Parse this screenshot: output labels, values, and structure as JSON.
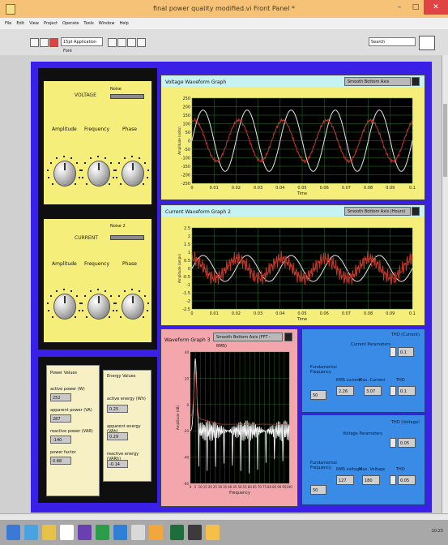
{
  "window": {
    "title": "final power quality modified.vi Front Panel *",
    "controls": {
      "minimize": "–",
      "maximize": "□",
      "close": "✕"
    }
  },
  "menu": [
    "File",
    "Edit",
    "View",
    "Project",
    "Operate",
    "Tools",
    "Window",
    "Help"
  ],
  "toolbar": {
    "font": "15pt Application Font",
    "search": "Search"
  },
  "voltage": {
    "title": "VOLTAGE",
    "slider_label": "Noise",
    "amplitude_label": "Amplitude",
    "frequency_label": "Frequency",
    "phase_label": "Phase"
  },
  "current": {
    "title": "CURRENT",
    "slider_label": "Noise 2",
    "amplitude_label": "Amplitude",
    "frequency_label": "Frequency",
    "phase_label": "Phase"
  },
  "power_values": {
    "title": "Power Values",
    "items": [
      {
        "label": "active power (W)",
        "value": "252"
      },
      {
        "label": "apparent power (VA)",
        "value": "287"
      },
      {
        "label": "reactive power (VAR)",
        "value": "-140"
      },
      {
        "label": "power factor",
        "value": "0.88"
      }
    ]
  },
  "energy_values": {
    "title": "Energy Values",
    "items": [
      {
        "label": "active energy (Wh)",
        "value": "0.25"
      },
      {
        "label": "apparent energy (VAh)",
        "value": "0.29"
      },
      {
        "label": "reactive energy (VARh)",
        "value": "-0.14"
      }
    ]
  },
  "voltage_graph": {
    "title": "Voltage Waveform Graph",
    "scale_button": "Smooth Bottom Axis",
    "xlabel": "Time",
    "ylabel": "Amplitude (volts)"
  },
  "current_graph": {
    "title": "Current Waveform Graph 2",
    "scale_button": "Smooth Bottom Axis (Hours)",
    "xlabel": "Time",
    "ylabel": "Amplitude (amps)"
  },
  "fft_graph": {
    "title": "Waveform Graph 3",
    "scale_button": "Smooth Bottom Axis (FFT - RMS)",
    "xlabel": "Frequency",
    "ylabel": "Amplitude (dB)"
  },
  "current_params": {
    "title": "Current Parameters",
    "thd_label": "THD (Current)",
    "thd_value": "0.1",
    "fund_freq_label": "Fundamental Frequency",
    "fund_freq_value": "50",
    "rms_label": "RMS current",
    "rms_value": "2.26",
    "max_label": "Max. Current",
    "max_value": "3.07",
    "thd2_label": "THD",
    "thd2_value": "0.1"
  },
  "voltage_params": {
    "title": "Voltage Parameters",
    "thd_label": "THD (Voltage)",
    "thd_value": "0.05",
    "fund_freq_label": "Fundamental Frequency",
    "fund_freq_value": "50",
    "rms_label": "RMS voltage",
    "rms_value": "127",
    "max_label": "Max. Voltage",
    "max_value": "180",
    "thd2_label": "THD",
    "thd2_value": "0.05"
  },
  "tray": {
    "time": "10:23"
  },
  "chart_data": [
    {
      "type": "line",
      "title": "Voltage Waveform Graph",
      "xlabel": "Time",
      "ylabel": "Amplitude (volts)",
      "x_ticks": [
        0,
        0.01,
        0.02,
        0.03,
        0.04,
        0.05,
        0.06,
        0.07,
        0.08,
        0.09,
        0.1
      ],
      "y_ticks": [
        -250,
        -200,
        -150,
        -100,
        -50,
        0,
        50,
        100,
        150,
        200,
        250
      ],
      "xlim": [
        0,
        0.1
      ],
      "ylim": [
        -250,
        250
      ],
      "series": [
        {
          "color": "#e6e6e6",
          "amplitude": 180,
          "frequency": 50,
          "phase": 0,
          "noise": 0
        },
        {
          "color": "#c0392b",
          "amplitude": 120,
          "frequency": 50,
          "phase": 1.2,
          "noise": 10
        }
      ]
    },
    {
      "type": "line",
      "title": "Current Waveform Graph 2",
      "xlabel": "Time",
      "ylabel": "Amplitude (amps)",
      "x_ticks": [
        0,
        0.01,
        0.02,
        0.03,
        0.04,
        0.05,
        0.06,
        0.07,
        0.08,
        0.09,
        0.1
      ],
      "y_ticks": [
        -2.5,
        -2,
        -1.5,
        -1,
        -0.5,
        0,
        0.5,
        1,
        1.5,
        2,
        2.5
      ],
      "xlim": [
        0,
        0.1
      ],
      "ylim": [
        -2.5,
        2.5
      ],
      "series": [
        {
          "color": "#e6e6e6",
          "amplitude": 0.8,
          "frequency": 50,
          "phase": 0,
          "noise": 0
        },
        {
          "color": "#c0392b",
          "amplitude": 0.6,
          "frequency": 50,
          "phase": 1.4,
          "noise": 0.5
        }
      ]
    },
    {
      "type": "line",
      "title": "Waveform Graph 3",
      "xlabel": "Frequency",
      "ylabel": "Amplitude (dB)",
      "x_ticks": [
        0,
        5,
        10,
        15,
        20,
        25,
        30,
        35,
        40,
        45,
        50,
        55,
        60,
        65,
        70,
        75,
        80,
        85,
        90,
        95,
        100
      ],
      "y_ticks": [
        -60,
        -40,
        -20,
        0,
        20,
        40
      ],
      "xlim": [
        0,
        100
      ],
      "ylim": [
        -60,
        40
      ],
      "series": [
        {
          "color": "#ffffff",
          "peak_x": 5,
          "peak_y": 35,
          "floor": -20
        },
        {
          "color": "#c0392b",
          "peak_x": 5,
          "peak_y": 20,
          "floor": -15
        }
      ]
    }
  ]
}
